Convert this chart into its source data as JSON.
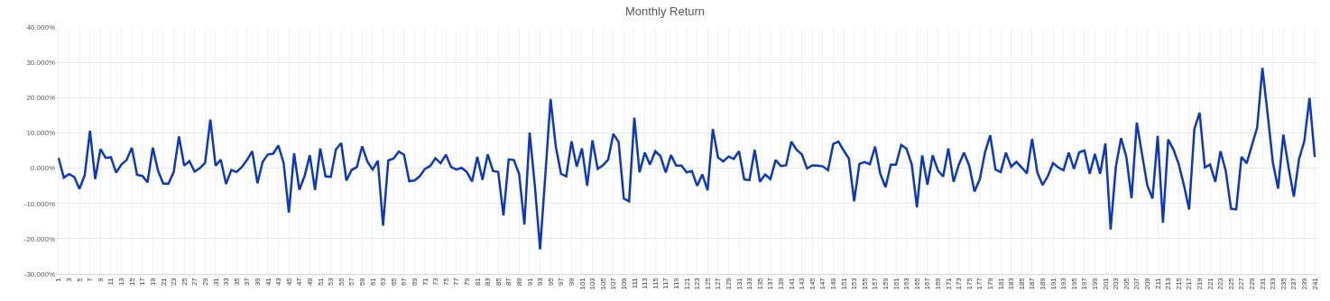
{
  "chart_data": {
    "type": "line",
    "title": "Monthly Return",
    "categories": [
      "1",
      null,
      "3",
      null,
      "5",
      null,
      "7",
      null,
      "9",
      null,
      "11",
      null,
      "13",
      null,
      "15",
      null,
      "17",
      null,
      "19",
      null,
      "21",
      null,
      "23",
      null,
      "25",
      null,
      "27",
      null,
      "29",
      null,
      "31",
      null,
      "33",
      null,
      "35",
      null,
      "37",
      null,
      "39",
      null,
      "41",
      null,
      "43",
      null,
      "45",
      null,
      "47",
      null,
      "49",
      null,
      "51",
      null,
      "53",
      null,
      "55",
      null,
      "57",
      null,
      "59",
      null,
      "61",
      null,
      "63",
      null,
      "65",
      null,
      "67",
      null,
      "69",
      null,
      "71",
      null,
      "73",
      null,
      "75",
      null,
      "77",
      null,
      "79",
      null,
      "81",
      null,
      "83",
      null,
      "85",
      null,
      "87",
      null,
      "89",
      null,
      "91",
      null,
      "93",
      null,
      "95",
      null,
      "97",
      null,
      "99",
      null,
      "101",
      null,
      "103",
      null,
      "105",
      null,
      "107",
      null,
      "109",
      null,
      "111",
      null,
      "113",
      null,
      "115",
      null,
      "117",
      null,
      "119",
      null,
      "121",
      null,
      "123",
      null,
      "125",
      null,
      "127",
      null,
      "129",
      null,
      "131",
      null,
      "133",
      null,
      "135",
      null,
      "137",
      null,
      "139",
      null,
      "141",
      null,
      "143",
      null,
      "145",
      null,
      "147",
      null,
      "149",
      null,
      "151",
      null,
      "153",
      null,
      "155",
      null,
      "157",
      null,
      "159",
      null,
      "161",
      null,
      "163",
      null,
      "165",
      null,
      "167",
      null,
      "169",
      null,
      "171",
      null,
      "173",
      null,
      "175",
      null,
      "177",
      null,
      "179",
      null,
      "181",
      null,
      "183",
      null,
      "185",
      null,
      "187",
      null,
      "189",
      null,
      "191",
      null,
      "193",
      null,
      "195",
      null,
      "197",
      null,
      "199",
      null,
      "201",
      null,
      "203",
      null,
      "205",
      null,
      "207",
      null,
      "209",
      null,
      "211",
      null,
      "213",
      null,
      "215",
      null,
      "217",
      null,
      "219",
      null,
      "221",
      null,
      "223",
      null,
      "225",
      null,
      "227",
      null,
      "229",
      null,
      "231",
      null,
      "233",
      null,
      "235",
      null,
      "237",
      null,
      "239",
      null,
      "241"
    ],
    "series": [
      {
        "color": "#0a37c3",
        "values": [
          2.9,
          -2.7,
          -1.7,
          -2.5,
          -5.9,
          -2,
          10.6,
          -3.1,
          5.4,
          2.9,
          3.1,
          -1.3,
          1,
          2.3,
          5.8,
          -1.9,
          -2.2,
          -4,
          5.8,
          -0.7,
          -4.4,
          -4.4,
          -1.1,
          9,
          0.7,
          2,
          -1,
          0,
          1.5,
          13.8,
          0.7,
          2.4,
          -4.5,
          -0.5,
          -1.1,
          0.3,
          2.3,
          4.8,
          -4.3,
          1.8,
          3.9,
          4.1,
          6.4,
          1.5,
          -12.6,
          4.2,
          -6.1,
          -2.3,
          3.7,
          -6.2,
          5.6,
          -2.3,
          -2.5,
          5.3,
          7.1,
          -3.5,
          -0.5,
          0.3,
          6.2,
          1.9,
          -0.4,
          2.1,
          -16.3,
          2.2,
          2.7,
          4.7,
          3.8,
          -3.7,
          -3.5,
          -2.3,
          -0.2,
          0.6,
          2.8,
          1.4,
          3.8,
          0.3,
          -0.4,
          0.1,
          -1.1,
          -3.8,
          3.2,
          -3.3,
          3.9,
          -0.8,
          -1.1,
          -13.4,
          2.5,
          2.3,
          -1.7,
          -16,
          10.1,
          -5,
          -23,
          -2,
          19.6,
          6.1,
          -1.6,
          -2.3,
          7.6,
          0.4,
          5.6,
          -5,
          7.9,
          -0.2,
          0.8,
          2.4,
          9.7,
          7.4,
          -8.6,
          -9.4,
          14.3,
          -1.2,
          4.4,
          1,
          4.8,
          3.4,
          -1.2,
          3.7,
          0.7,
          0.7,
          -1.2,
          -0.8,
          -5,
          -1.8,
          -6.3,
          11.1,
          3,
          1.9,
          3.3,
          2.6,
          4.8,
          -3.2,
          -3.4,
          5.2,
          -3.9,
          -1.8,
          -3.1,
          2.3,
          0.6,
          0.8,
          7.5,
          5.2,
          3.9,
          -0.1,
          0.8,
          0.7,
          0.5,
          -0.6,
          6.8,
          7.5,
          5,
          2.7,
          -9.4,
          1.2,
          1.7,
          1.1,
          6.1,
          -1.6,
          -5.4,
          1,
          1,
          6.6,
          5.5,
          1.1,
          -11.1,
          3.6,
          -4.7,
          3.6,
          -0.6,
          -2.4,
          5.6,
          -3.9,
          1,
          4.4,
          0.6,
          -6.6,
          -3.2,
          4.5,
          9.3,
          -0.4,
          -1.1,
          4.4,
          0.4,
          1.8,
          0.2,
          -1.5,
          8.3,
          -1.2,
          -4.8,
          -2.3,
          1.4,
          0.2,
          -0.6,
          4.4,
          -0.2,
          4.5,
          5,
          -1.6,
          4,
          -1.6,
          7,
          -17.4,
          0.4,
          8.5,
          3.2,
          -8.5,
          12.9,
          4,
          -4.8,
          -8.6,
          9.1,
          -15.5,
          8.1,
          5.3,
          1.2,
          -4.8,
          -11.7,
          11.1,
          15.7,
          0.2,
          1,
          -3.9,
          4.8,
          -0.8,
          -11.5,
          -11.7,
          3.2,
          1.4,
          6.5,
          11.5,
          28.4,
          15.3,
          1.6,
          -5.8,
          9.5,
          0.2,
          -8.1,
          2.6,
          7.6,
          19.9,
          3.2
        ]
      }
    ],
    "ylim": [
      -30,
      40
    ],
    "yticks": [
      {
        "value": -30,
        "label": "-30.000%"
      },
      {
        "value": -20,
        "label": "-20.000%"
      },
      {
        "value": -10,
        "label": "-10.000%"
      },
      {
        "value": 0,
        "label": "0.000%"
      },
      {
        "value": 10,
        "label": "10.000%"
      },
      {
        "value": 20,
        "label": "20.000%"
      },
      {
        "value": 30,
        "label": "30.000%"
      },
      {
        "value": 40,
        "label": "40.000%"
      }
    ],
    "grid": true,
    "marker": "none",
    "line_style": "solid"
  }
}
